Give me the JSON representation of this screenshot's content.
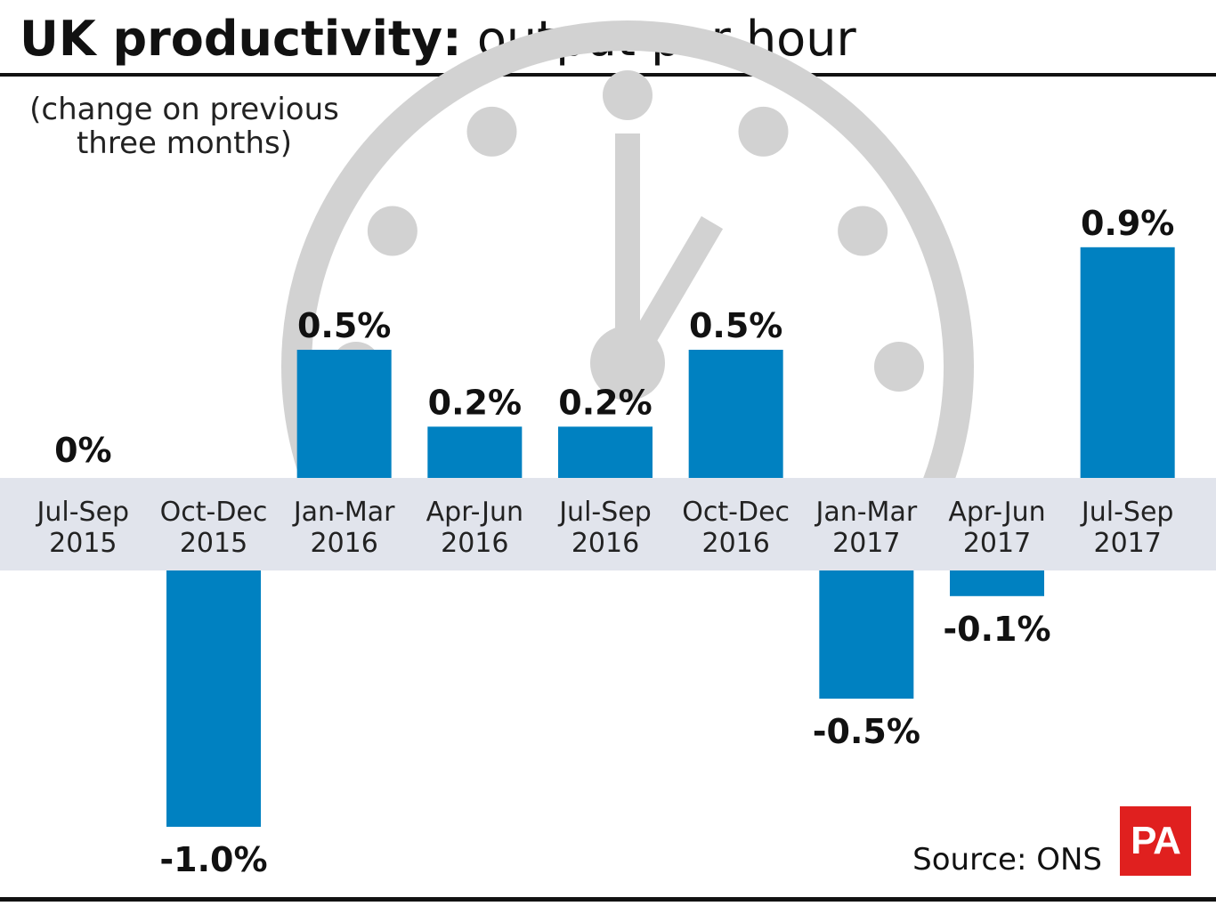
{
  "header": {
    "title_bold": "UK productivity:",
    "title_light": "output per hour",
    "subtitle_line1": "(change on previous",
    "subtitle_line2": "three months)"
  },
  "footer": {
    "source": "Source: ONS",
    "logo_text": "PA"
  },
  "colors": {
    "bar": "#0081c1",
    "band": "#e1e4ec",
    "watermark": "#d2d2d2"
  },
  "chart_data": {
    "type": "bar",
    "categories": [
      [
        "Jul-Sep",
        "2015"
      ],
      [
        "Oct-Dec",
        "2015"
      ],
      [
        "Jan-Mar",
        "2016"
      ],
      [
        "Apr-Jun",
        "2016"
      ],
      [
        "Jul-Sep",
        "2016"
      ],
      [
        "Oct-Dec",
        "2016"
      ],
      [
        "Jan-Mar",
        "2017"
      ],
      [
        "Apr-Jun",
        "2017"
      ],
      [
        "Jul-Sep",
        "2017"
      ]
    ],
    "values": [
      0,
      -1.0,
      0.5,
      0.2,
      0.2,
      0.5,
      -0.5,
      -0.1,
      0.9
    ],
    "data_labels": [
      "0%",
      "-1.0%",
      "0.5%",
      "0.2%",
      "0.2%",
      "0.5%",
      "-0.5%",
      "-0.1%",
      "0.9%"
    ],
    "unit": "%",
    "ylim": [
      -1.0,
      0.9
    ],
    "grid": false,
    "legend": "none"
  }
}
